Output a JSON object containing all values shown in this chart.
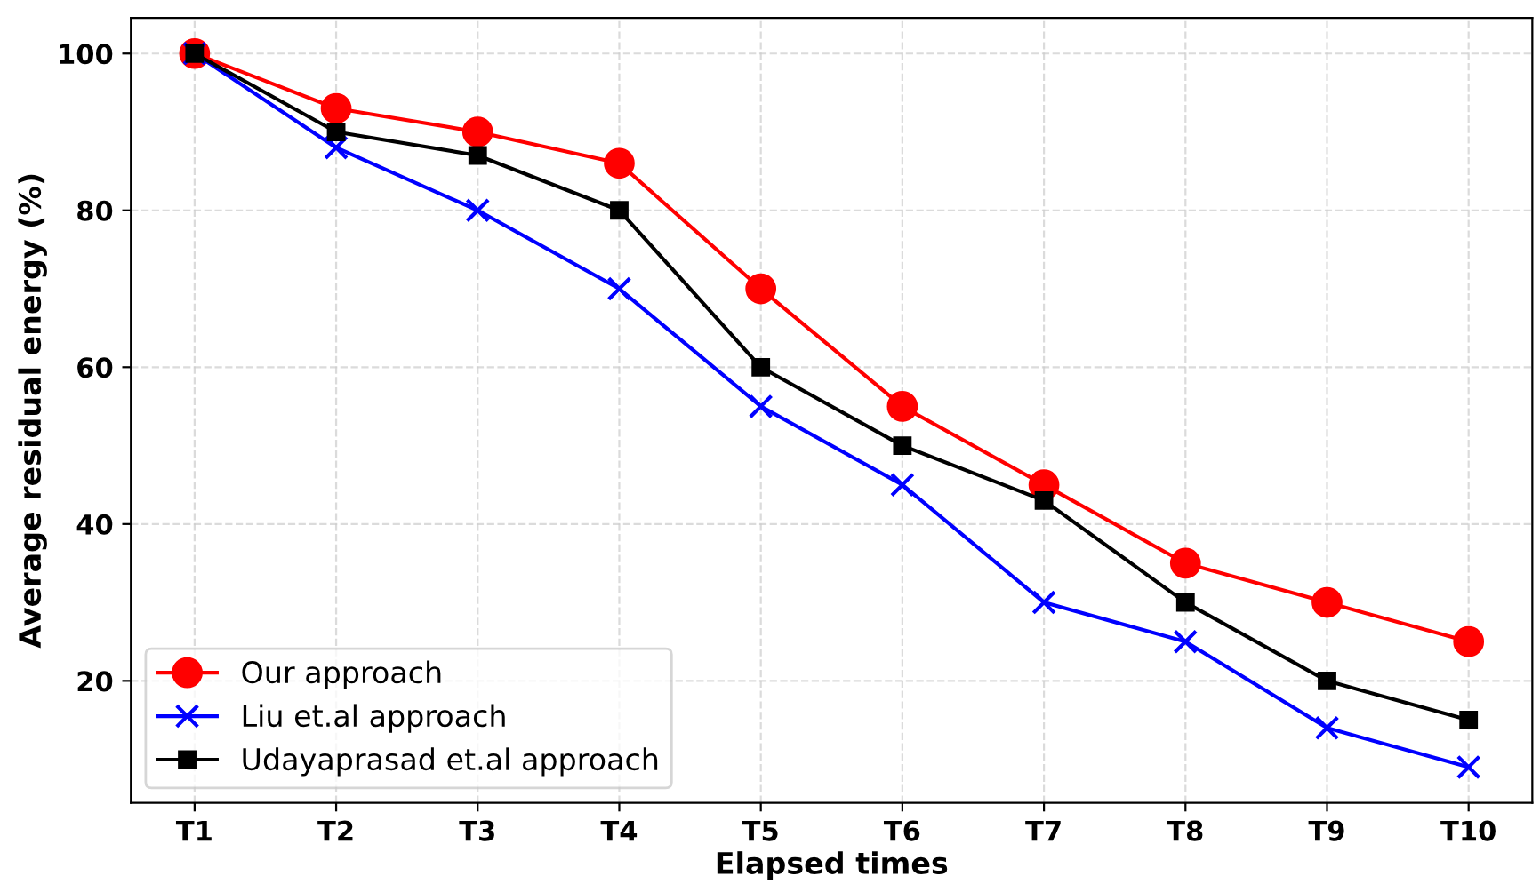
{
  "chart_data": {
    "type": "line",
    "xlabel": "Elapsed times",
    "ylabel": "Average residual energy (%)",
    "categories": [
      "T1",
      "T2",
      "T3",
      "T4",
      "T5",
      "T6",
      "T7",
      "T8",
      "T9",
      "T10"
    ],
    "series": [
      {
        "name": "Our approach",
        "color": "#ff0000",
        "marker": "circle",
        "values": [
          100,
          93,
          90,
          86,
          70,
          55,
          45,
          35,
          30,
          25
        ]
      },
      {
        "name": "Liu et.al approach",
        "color": "#0000ff",
        "marker": "cross",
        "values": [
          100,
          88,
          80,
          70,
          55,
          45,
          30,
          25,
          14,
          9
        ]
      },
      {
        "name": "Udayaprasad et.al approach",
        "color": "#000000",
        "marker": "square",
        "values": [
          100,
          90,
          87,
          80,
          60,
          50,
          43,
          30,
          20,
          15
        ]
      }
    ],
    "ylim": [
      4.45,
      104.55
    ],
    "yticks": [
      20,
      40,
      60,
      80,
      100
    ],
    "grid": true,
    "legend": "bottom left",
    "line_style": "solid"
  }
}
